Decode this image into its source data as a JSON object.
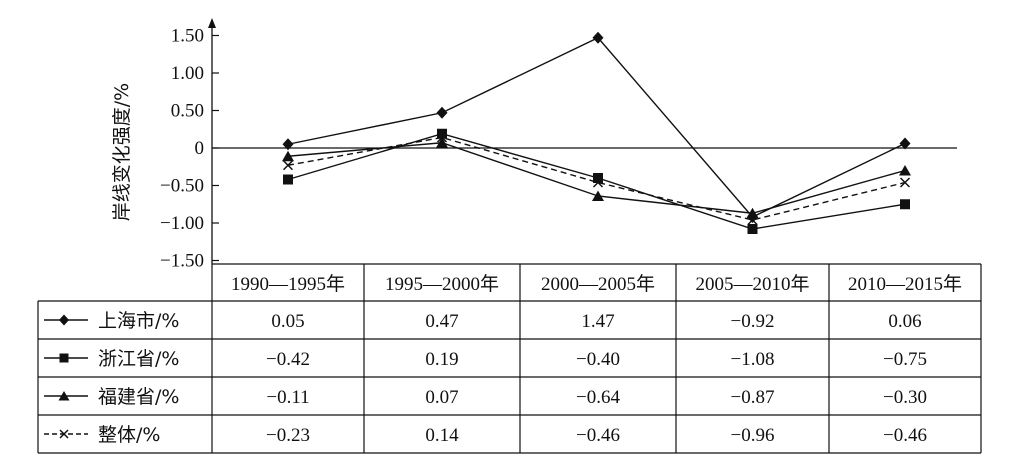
{
  "chart_data": {
    "type": "line",
    "title": "",
    "ylabel": "岸线变化强度/%",
    "ylim": [
      -1.5,
      1.5
    ],
    "yticks": [
      1.5,
      1.0,
      0.5,
      0,
      -0.5,
      -1.0,
      -1.5
    ],
    "ytick_labels": [
      "1.50",
      "1.00",
      "0.50",
      "0",
      "−0.50",
      "−1.00",
      "−1.50"
    ],
    "categories": [
      "1990—1995年",
      "1995—2000年",
      "2000—2005年",
      "2005—2010年",
      "2010—2015年"
    ],
    "legend_position": "table-below",
    "grid": false,
    "series": [
      {
        "name": "上海市/%",
        "marker": "diamond",
        "line": "solid",
        "values": [
          0.05,
          0.47,
          1.47,
          -0.92,
          0.06
        ],
        "labels": [
          "0.05",
          "0.47",
          "1.47",
          "−0.92",
          "0.06"
        ]
      },
      {
        "name": "浙江省/%",
        "marker": "square",
        "line": "solid",
        "values": [
          -0.42,
          0.19,
          -0.4,
          -1.08,
          -0.75
        ],
        "labels": [
          "−0.42",
          "0.19",
          "−0.40",
          "−1.08",
          "−0.75"
        ]
      },
      {
        "name": "福建省/%",
        "marker": "triangle",
        "line": "solid",
        "values": [
          -0.11,
          0.07,
          -0.64,
          -0.87,
          -0.3
        ],
        "labels": [
          "−0.11",
          "0.07",
          "−0.64",
          "−0.87",
          "−0.30"
        ]
      },
      {
        "name": "整体/%",
        "marker": "x",
        "line": "dashed",
        "values": [
          -0.23,
          0.14,
          -0.46,
          -0.96,
          -0.46
        ],
        "labels": [
          "−0.23",
          "0.14",
          "−0.46",
          "−0.96",
          "−0.46"
        ]
      }
    ],
    "colors": {
      "ink": "#111111",
      "background": "#ffffff"
    }
  }
}
